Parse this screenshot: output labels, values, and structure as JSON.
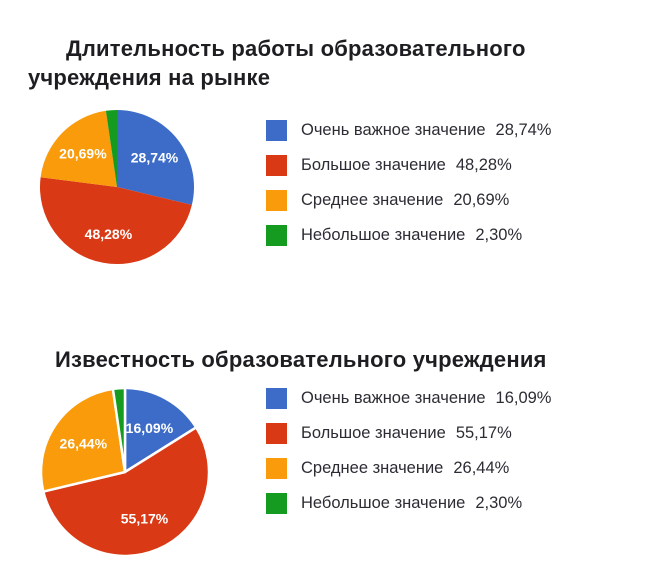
{
  "page": {
    "background_color": "#ffffff"
  },
  "palette": {
    "blue": "#3c6cc8",
    "red": "#d93a15",
    "orange": "#f99b0b",
    "green": "#159b20",
    "title_text": "#1e1e22",
    "legend_text": "#2c2c34",
    "slice_label_text": "#ffffff"
  },
  "chart_data": [
    {
      "type": "pie",
      "title": "Длительность работы образовательного учреждения на рынке",
      "title_lines": [
        "Длительность работы образовательного",
        "учреждения на рынке"
      ],
      "categories": [
        "Очень важное значение",
        "Большое значение",
        "Среднее значение",
        "Небольшое значение"
      ],
      "values": [
        28.74,
        48.28,
        20.69,
        2.3
      ],
      "slice_labels": [
        "28,74%",
        "48,28%",
        "20,69%",
        ""
      ],
      "colors": [
        "#3c6cc8",
        "#d93a15",
        "#f99b0b",
        "#159b20"
      ],
      "legend_position": "right",
      "start_angle_deg": 0,
      "direction": "clockwise",
      "legend": [
        {
          "label": "Очень важное значение",
          "value": "28,74%"
        },
        {
          "label": "Большое значение",
          "value": "48,28%"
        },
        {
          "label": "Среднее значение",
          "value": "20,69%"
        },
        {
          "label": "Небольшое значение",
          "value": "2,30%"
        }
      ]
    },
    {
      "type": "pie",
      "title": "Известность образовательного учреждения",
      "title_lines": [
        "Известность образовательного учреждения"
      ],
      "categories": [
        "Очень важное значение",
        "Большое значение",
        "Среднее значение",
        "Небольшое значение"
      ],
      "values": [
        16.09,
        55.17,
        26.44,
        2.3
      ],
      "slice_labels": [
        "16,09%",
        "55,17%",
        "26,44%",
        ""
      ],
      "colors": [
        "#3c6cc8",
        "#d93a15",
        "#f99b0b",
        "#159b20"
      ],
      "legend_position": "right",
      "start_angle_deg": 0,
      "direction": "clockwise",
      "legend": [
        {
          "label": "Очень важное значение",
          "value": "16,09%"
        },
        {
          "label": "Большое значение",
          "value": "55,17%"
        },
        {
          "label": "Среднее значение",
          "value": "26,44%"
        },
        {
          "label": "Небольшое значение",
          "value": "2,30%"
        }
      ]
    }
  ]
}
